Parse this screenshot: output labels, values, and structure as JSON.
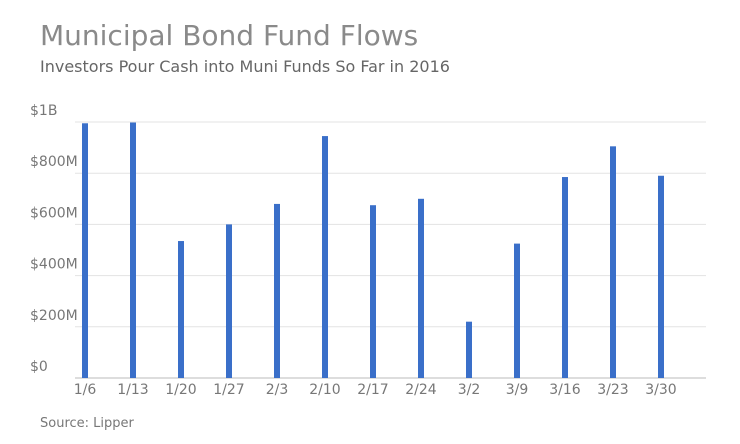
{
  "chart_data": {
    "type": "bar",
    "title": "Municipal Bond Fund Flows",
    "subtitle": "Investors Pour Cash into Muni Funds So Far in 2016",
    "source": "Source: Lipper",
    "categories": [
      "1/6",
      "1/13",
      "1/20",
      "1/27",
      "2/3",
      "2/10",
      "2/17",
      "2/24",
      "3/2",
      "3/9",
      "3/16",
      "3/23",
      "3/30"
    ],
    "values": [
      995000000,
      998000000,
      535000000,
      600000000,
      680000000,
      945000000,
      675000000,
      700000000,
      220000000,
      525000000,
      785000000,
      905000000,
      790000000
    ],
    "color": "#3a6fc9",
    "ylim": [
      0,
      1000000000
    ],
    "yticks": [
      {
        "value": 0,
        "label": "$0"
      },
      {
        "value": 200000000,
        "label": "$200M"
      },
      {
        "value": 400000000,
        "label": "$400M"
      },
      {
        "value": 600000000,
        "label": "$600M"
      },
      {
        "value": 800000000,
        "label": "$800M"
      },
      {
        "value": 1000000000,
        "label": "$1B"
      }
    ],
    "grid": true
  }
}
